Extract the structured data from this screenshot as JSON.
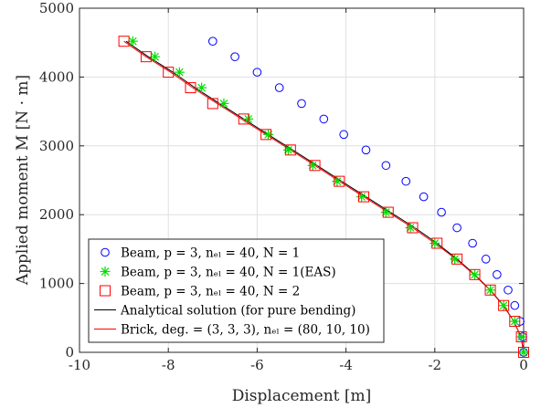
{
  "chart_data": {
    "type": "scatter",
    "xlabel": "Displacement [m]",
    "ylabel": "Applied moment M [N · m]",
    "xlim": [
      -10,
      0
    ],
    "ylim": [
      0,
      5000
    ],
    "x_ticks": [
      -10,
      -8,
      -6,
      -4,
      -2,
      0
    ],
    "y_ticks": [
      0,
      1000,
      2000,
      3000,
      4000,
      5000
    ],
    "grid": true,
    "legend_position": "bottom-left",
    "series": [
      {
        "name": "Beam, p = 3, n_el = 40, N = 1",
        "legend_label": "Beam, p = 3, nₑₗ = 40, N = 1",
        "marker": "circle",
        "color": "#0000ff",
        "points": [
          [
            -7.0,
            4520
          ],
          [
            -6.5,
            4295
          ],
          [
            -6.0,
            4070
          ],
          [
            -5.5,
            3845
          ],
          [
            -5.0,
            3615
          ],
          [
            -4.5,
            3390
          ],
          [
            -4.05,
            3165
          ],
          [
            -3.55,
            2940
          ],
          [
            -3.1,
            2715
          ],
          [
            -2.65,
            2485
          ],
          [
            -2.25,
            2260
          ],
          [
            -1.85,
            2035
          ],
          [
            -1.5,
            1810
          ],
          [
            -1.15,
            1585
          ],
          [
            -0.85,
            1355
          ],
          [
            -0.6,
            1130
          ],
          [
            -0.35,
            905
          ],
          [
            -0.2,
            680
          ],
          [
            -0.08,
            450
          ],
          [
            -0.02,
            225
          ],
          [
            0.0,
            0
          ]
        ]
      },
      {
        "name": "Beam, p = 3, n_el = 40, N = 1(EAS)",
        "legend_label": "Beam, p = 3, nₑₗ = 40, N = 1(EAS)",
        "marker": "asterisk",
        "color": "#00e000",
        "points": [
          [
            -8.8,
            4520
          ],
          [
            -8.3,
            4295
          ],
          [
            -7.75,
            4070
          ],
          [
            -7.25,
            3845
          ],
          [
            -6.75,
            3615
          ],
          [
            -6.2,
            3390
          ],
          [
            -5.75,
            3165
          ],
          [
            -5.3,
            2940
          ],
          [
            -4.75,
            2715
          ],
          [
            -4.2,
            2485
          ],
          [
            -3.65,
            2260
          ],
          [
            -3.1,
            2035
          ],
          [
            -2.55,
            1810
          ],
          [
            -2.0,
            1585
          ],
          [
            -1.55,
            1355
          ],
          [
            -1.1,
            1130
          ],
          [
            -0.75,
            905
          ],
          [
            -0.45,
            680
          ],
          [
            -0.2,
            450
          ],
          [
            -0.05,
            225
          ],
          [
            0.0,
            0
          ]
        ]
      },
      {
        "name": "Beam, p = 3, n_el = 40, N = 2",
        "legend_label": "Beam, p = 3, nₑₗ = 40, N = 2",
        "marker": "square",
        "color": "#ff0000",
        "points": [
          [
            -9.0,
            4520
          ],
          [
            -8.5,
            4295
          ],
          [
            -8.0,
            4070
          ],
          [
            -7.5,
            3845
          ],
          [
            -7.0,
            3615
          ],
          [
            -6.3,
            3390
          ],
          [
            -5.8,
            3165
          ],
          [
            -5.25,
            2940
          ],
          [
            -4.7,
            2715
          ],
          [
            -4.15,
            2485
          ],
          [
            -3.6,
            2260
          ],
          [
            -3.05,
            2035
          ],
          [
            -2.5,
            1810
          ],
          [
            -1.95,
            1585
          ],
          [
            -1.5,
            1355
          ],
          [
            -1.1,
            1130
          ],
          [
            -0.75,
            905
          ],
          [
            -0.45,
            680
          ],
          [
            -0.2,
            450
          ],
          [
            -0.05,
            225
          ],
          [
            0.0,
            0
          ]
        ]
      },
      {
        "name": "Analytical solution (for pure bending)",
        "legend_label": "Analytical solution (for pure bending)",
        "marker": "line",
        "color": "#000000",
        "points": [
          [
            -8.95,
            4520
          ],
          [
            -8.45,
            4295
          ],
          [
            -7.9,
            4070
          ],
          [
            -7.4,
            3845
          ],
          [
            -6.85,
            3615
          ],
          [
            -6.3,
            3390
          ],
          [
            -5.75,
            3165
          ],
          [
            -5.2,
            2940
          ],
          [
            -4.65,
            2715
          ],
          [
            -4.1,
            2485
          ],
          [
            -3.55,
            2260
          ],
          [
            -3.0,
            2035
          ],
          [
            -2.45,
            1810
          ],
          [
            -1.95,
            1585
          ],
          [
            -1.5,
            1355
          ],
          [
            -1.1,
            1130
          ],
          [
            -0.75,
            905
          ],
          [
            -0.45,
            680
          ],
          [
            -0.22,
            450
          ],
          [
            -0.06,
            225
          ],
          [
            0.0,
            0
          ]
        ]
      },
      {
        "name": "Brick, deg. = (3, 3, 3), n_el = (80, 10, 10)",
        "legend_label": "Brick, deg. = (3, 3, 3), nₑₗ = (80, 10, 10)",
        "marker": "line",
        "color": "#ff0000",
        "points": [
          [
            -9.0,
            4520
          ],
          [
            -8.5,
            4295
          ],
          [
            -7.95,
            4070
          ],
          [
            -7.45,
            3845
          ],
          [
            -6.9,
            3615
          ],
          [
            -6.35,
            3390
          ],
          [
            -5.8,
            3165
          ],
          [
            -5.25,
            2940
          ],
          [
            -4.7,
            2715
          ],
          [
            -4.15,
            2485
          ],
          [
            -3.6,
            2260
          ],
          [
            -3.05,
            2035
          ],
          [
            -2.5,
            1810
          ],
          [
            -2.0,
            1585
          ],
          [
            -1.52,
            1355
          ],
          [
            -1.12,
            1130
          ],
          [
            -0.76,
            905
          ],
          [
            -0.46,
            680
          ],
          [
            -0.22,
            450
          ],
          [
            -0.06,
            225
          ],
          [
            0.0,
            0
          ]
        ]
      }
    ]
  }
}
